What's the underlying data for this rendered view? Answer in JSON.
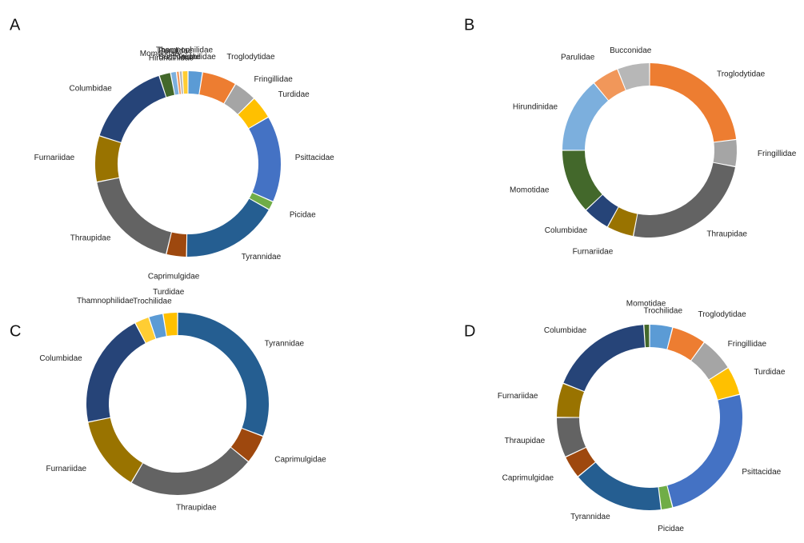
{
  "chart_data": [
    {
      "type": "donut",
      "title": "A",
      "categories": [
        "Trochilidae",
        "Troglodytidae",
        "Fringillidae",
        "Turdidae",
        "Psittacidae",
        "Picidae",
        "Tyrannidae",
        "Caprimulgidae",
        "Thraupidae",
        "Furnariidae",
        "Columbidae",
        "Momotidae",
        "Hirundinidae",
        "Parulidae",
        "Bucconidae",
        "Thamnophilidae"
      ],
      "values": [
        2.5,
        6,
        4,
        4,
        15,
        1.5,
        17,
        3.5,
        18,
        8,
        15,
        2,
        1,
        0.5,
        0.5,
        1
      ],
      "colors": [
        "#5b9bd5",
        "#ed7d31",
        "#a5a5a5",
        "#ffc000",
        "#4472c4",
        "#70ad47",
        "#255e91",
        "#9e480e",
        "#636363",
        "#997300",
        "#264478",
        "#43682b",
        "#7cafdd",
        "#f1975a",
        "#b7b7b7",
        "#ffcd33"
      ]
    },
    {
      "type": "donut",
      "title": "B",
      "categories": [
        "Troglodytidae",
        "Fringillidae",
        "Thraupidae",
        "Furnariidae",
        "Columbidae",
        "Momotidae",
        "Hirundinidae",
        "Parulidae",
        "Bucconidae"
      ],
      "values": [
        23,
        5,
        25,
        5,
        5,
        12,
        14,
        5,
        6
      ],
      "colors": [
        "#ed7d31",
        "#a5a5a5",
        "#636363",
        "#997300",
        "#264478",
        "#43682b",
        "#7cafdd",
        "#f1975a",
        "#b7b7b7"
      ]
    },
    {
      "type": "donut",
      "title": "C",
      "categories": [
        "Tyrannidae",
        "Caprimulgidae",
        "Thraupidae",
        "Furnariidae",
        "Columbidae",
        "Thamnophilidae",
        "Trochilidae",
        "Turdidae"
      ],
      "values": [
        30,
        5,
        22,
        13,
        20,
        2.5,
        2.5,
        2.5
      ],
      "colors": [
        "#255e91",
        "#9e480e",
        "#636363",
        "#997300",
        "#264478",
        "#ffcd33",
        "#5b9bd5",
        "#ffc000"
      ]
    },
    {
      "type": "donut",
      "title": "D",
      "categories": [
        "Trochilidae",
        "Troglodytidae",
        "Fringillidae",
        "Turdidae",
        "Psittacidae",
        "Picidae",
        "Tyrannidae",
        "Caprimulgidae",
        "Thraupidae",
        "Furnariidae",
        "Columbidae",
        "Momotidae"
      ],
      "values": [
        4,
        6,
        6,
        5,
        25,
        2,
        16,
        4,
        7,
        6,
        18,
        1
      ],
      "colors": [
        "#5b9bd5",
        "#ed7d31",
        "#a5a5a5",
        "#ffc000",
        "#4472c4",
        "#70ad47",
        "#255e91",
        "#9e480e",
        "#636363",
        "#997300",
        "#264478",
        "#43682b"
      ]
    }
  ]
}
